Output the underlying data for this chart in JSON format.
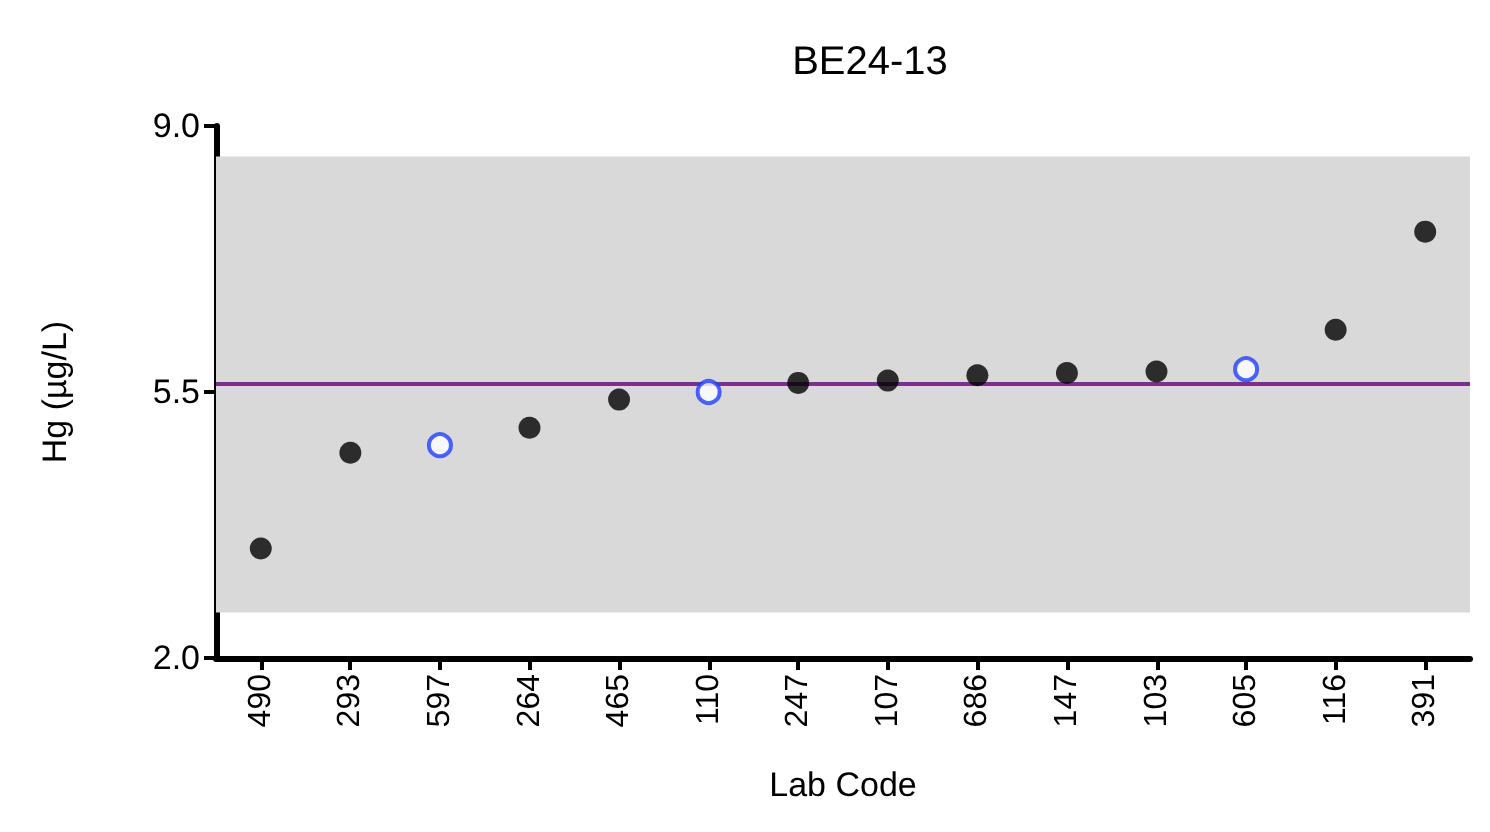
{
  "chart_data": {
    "type": "scatter",
    "title": "BE24-13",
    "xlabel": "Lab Code",
    "ylabel": "Hg (µg/L)",
    "categories": [
      "490",
      "293",
      "597",
      "264",
      "465",
      "110",
      "247",
      "107",
      "686",
      "147",
      "103",
      "605",
      "116",
      "391"
    ],
    "series": [
      {
        "color": "#000000",
        "x": [
          "490",
          "293",
          "264",
          "465",
          "247",
          "107",
          "686",
          "147",
          "103",
          "116",
          "391"
        ],
        "values": [
          3.44,
          4.7,
          5.03,
          5.4,
          5.62,
          5.65,
          5.72,
          5.75,
          5.77,
          6.32,
          7.61
        ]
      },
      {
        "color": "#1f3fff",
        "x": [
          "597",
          "110",
          "605"
        ],
        "values": [
          4.8,
          5.5,
          5.8
        ]
      }
    ],
    "ylim": [
      2,
      9
    ],
    "yticks": [
      {
        "value": 2,
        "label": "2.0"
      },
      {
        "value": 5.5,
        "label": "5.5"
      },
      {
        "value": 9,
        "label": "9.0"
      }
    ],
    "ref_lines": [
      {
        "axis": "y",
        "value": 5.62,
        "color": "#7b2f8f"
      }
    ],
    "bands": [
      {
        "axis": "y",
        "from": 2.6,
        "to": 8.6,
        "color": "#d9d9d9"
      }
    ],
    "grid": false,
    "marker": "circle"
  }
}
